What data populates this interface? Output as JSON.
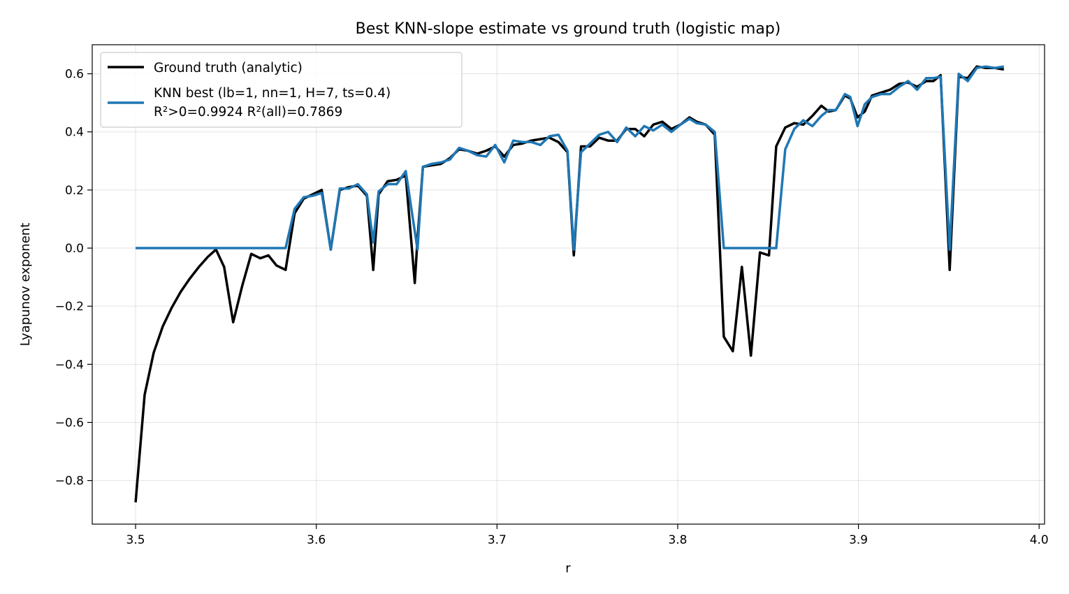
{
  "chart_data": {
    "type": "line",
    "title": "Best KNN-slope estimate vs ground truth (logistic map)",
    "xlabel": "r",
    "ylabel": "Lyapunov exponent",
    "xlim": [
      3.476,
      4.003
    ],
    "ylim": [
      -0.95,
      0.7
    ],
    "xticks": [
      3.5,
      3.6,
      3.7,
      3.8,
      3.9,
      4.0
    ],
    "xtick_labels": [
      "3.5",
      "3.6",
      "3.7",
      "3.8",
      "3.9",
      "4.0"
    ],
    "yticks": [
      -0.8,
      -0.6,
      -0.4,
      -0.2,
      0.0,
      0.2,
      0.4,
      0.6
    ],
    "ytick_labels": [
      "−0.8",
      "−0.6",
      "−0.4",
      "−0.2",
      "0.0",
      "0.2",
      "0.4",
      "0.6"
    ],
    "grid": true,
    "legend_position": "top-left",
    "series": [
      {
        "name": "Ground truth (analytic)",
        "color": "#000000",
        "x": [
          3.5,
          3.505,
          3.51,
          3.515,
          3.52,
          3.525,
          3.53,
          3.535,
          3.54,
          3.5445,
          3.549,
          3.554,
          3.559,
          3.564,
          3.569,
          3.5735,
          3.578,
          3.583,
          3.588,
          3.593,
          3.598,
          3.603,
          3.608,
          3.613,
          3.618,
          3.623,
          3.628,
          3.6315,
          3.6345,
          3.6395,
          3.6445,
          3.6495,
          3.6545,
          3.656,
          3.659,
          3.664,
          3.669,
          3.674,
          3.679,
          3.684,
          3.689,
          3.694,
          3.699,
          3.704,
          3.709,
          3.714,
          3.719,
          3.724,
          3.729,
          3.734,
          3.739,
          3.7425,
          3.7465,
          3.7515,
          3.7565,
          3.7615,
          3.7665,
          3.7715,
          3.7765,
          3.7815,
          3.7865,
          3.7915,
          3.7965,
          3.8015,
          3.8065,
          3.8105,
          3.8155,
          3.8205,
          3.8255,
          3.8305,
          3.8355,
          3.8405,
          3.8455,
          3.8505,
          3.8545,
          3.8595,
          3.8645,
          3.8695,
          3.8745,
          3.8795,
          3.8835,
          3.8875,
          3.8925,
          3.8955,
          3.8995,
          3.9035,
          3.9075,
          3.9125,
          3.9175,
          3.9225,
          3.9275,
          3.9325,
          3.9375,
          3.9415,
          3.9455,
          3.9505,
          3.9555,
          3.9605,
          3.9655,
          3.9705,
          3.9755,
          3.9805
        ],
        "values": [
          -0.875,
          -0.505,
          -0.36,
          -0.27,
          -0.205,
          -0.15,
          -0.105,
          -0.065,
          -0.03,
          -0.005,
          -0.065,
          -0.255,
          -0.13,
          -0.02,
          -0.035,
          -0.025,
          -0.06,
          -0.075,
          0.12,
          0.17,
          0.185,
          0.2,
          -0.005,
          0.2,
          0.21,
          0.215,
          0.18,
          -0.075,
          0.185,
          0.23,
          0.235,
          0.25,
          -0.12,
          0.03,
          0.28,
          0.285,
          0.29,
          0.31,
          0.34,
          0.335,
          0.325,
          0.335,
          0.35,
          0.315,
          0.355,
          0.36,
          0.37,
          0.375,
          0.38,
          0.365,
          0.33,
          -0.025,
          0.35,
          0.35,
          0.38,
          0.37,
          0.37,
          0.41,
          0.41,
          0.385,
          0.425,
          0.435,
          0.41,
          0.425,
          0.45,
          0.435,
          0.425,
          0.39,
          -0.305,
          -0.355,
          -0.065,
          -0.37,
          -0.015,
          -0.025,
          0.35,
          0.415,
          0.43,
          0.425,
          0.455,
          0.49,
          0.47,
          0.475,
          0.525,
          0.515,
          0.45,
          0.47,
          0.525,
          0.535,
          0.545,
          0.565,
          0.57,
          0.555,
          0.575,
          0.575,
          0.595,
          -0.075,
          0.59,
          0.585,
          0.625,
          0.62,
          0.62,
          0.615
        ]
      },
      {
        "name": "KNN best (lb=1, nn=1, H=7, ts=0.4)",
        "name_line2": "R²>0=0.9924  R²(all)=0.7869",
        "color": "#1f77b4",
        "x": [
          3.5,
          3.583,
          3.588,
          3.593,
          3.598,
          3.603,
          3.608,
          3.613,
          3.618,
          3.623,
          3.628,
          3.6315,
          3.6345,
          3.6395,
          3.6445,
          3.6495,
          3.656,
          3.659,
          3.664,
          3.669,
          3.674,
          3.679,
          3.684,
          3.689,
          3.694,
          3.699,
          3.704,
          3.709,
          3.714,
          3.719,
          3.724,
          3.729,
          3.734,
          3.739,
          3.7425,
          3.7465,
          3.7515,
          3.7565,
          3.7615,
          3.7665,
          3.7715,
          3.7765,
          3.7815,
          3.7865,
          3.7915,
          3.7965,
          3.8015,
          3.8065,
          3.8105,
          3.8155,
          3.8205,
          3.8255,
          3.8305,
          3.8545,
          3.8595,
          3.8645,
          3.8695,
          3.8745,
          3.8795,
          3.8835,
          3.8875,
          3.8925,
          3.8955,
          3.8995,
          3.9035,
          3.9075,
          3.9125,
          3.9175,
          3.9225,
          3.9275,
          3.9325,
          3.9375,
          3.9415,
          3.9455,
          3.9505,
          3.9555,
          3.9605,
          3.9655,
          3.9705,
          3.9755,
          3.9805
        ],
        "values": [
          0.0,
          0.0,
          0.135,
          0.175,
          0.18,
          0.19,
          -0.005,
          0.205,
          0.205,
          0.22,
          0.185,
          0.02,
          0.195,
          0.22,
          0.22,
          0.265,
          -0.005,
          0.28,
          0.29,
          0.295,
          0.305,
          0.345,
          0.335,
          0.32,
          0.315,
          0.355,
          0.295,
          0.37,
          0.365,
          0.365,
          0.355,
          0.385,
          0.39,
          0.335,
          -0.005,
          0.33,
          0.36,
          0.39,
          0.4,
          0.365,
          0.415,
          0.385,
          0.42,
          0.405,
          0.425,
          0.4,
          0.425,
          0.445,
          0.43,
          0.425,
          0.4,
          0.0,
          0.0,
          0.0,
          0.34,
          0.41,
          0.44,
          0.42,
          0.455,
          0.475,
          0.475,
          0.53,
          0.52,
          0.42,
          0.495,
          0.52,
          0.53,
          0.53,
          0.555,
          0.575,
          0.545,
          0.585,
          0.585,
          0.59,
          -0.005,
          0.6,
          0.575,
          0.62,
          0.625,
          0.62,
          0.625
        ]
      }
    ]
  }
}
